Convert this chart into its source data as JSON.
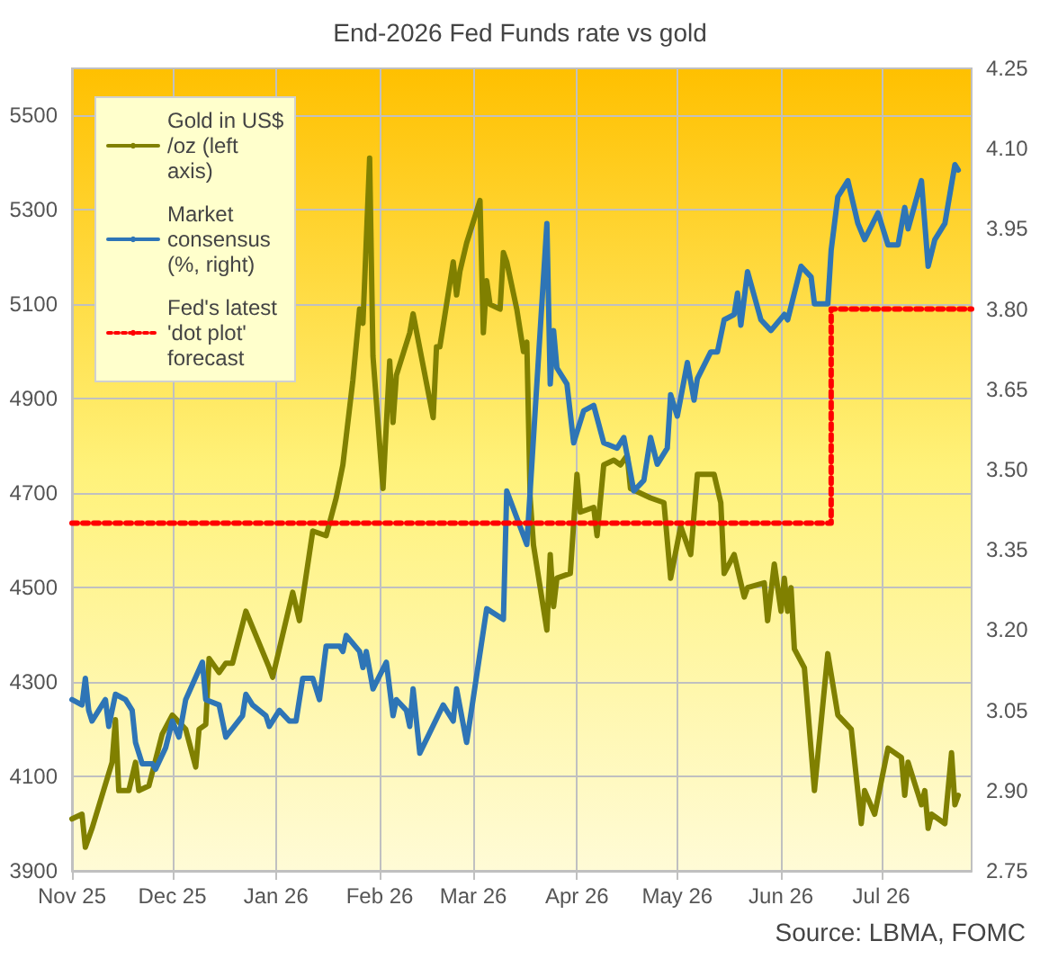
{
  "chart_data": {
    "type": "line",
    "title": "End-2026 Fed Funds rate vs gold",
    "annotations": [
      "Source: LBMA, FOMC"
    ],
    "xlim": [
      "2025-11-01",
      "2026-07-28"
    ],
    "xticks": [
      {
        "value": "2025-11-01",
        "label": "Nov 25"
      },
      {
        "value": "2025-12-01",
        "label": "Dec 25"
      },
      {
        "value": "2026-01-01",
        "label": "Jan 26"
      },
      {
        "value": "2026-02-01",
        "label": "Feb 26"
      },
      {
        "value": "2026-03-01",
        "label": "Mar 26"
      },
      {
        "value": "2026-04-01",
        "label": "Apr 26"
      },
      {
        "value": "2026-05-01",
        "label": "May 26"
      },
      {
        "value": "2026-06-01",
        "label": "Jun 26"
      },
      {
        "value": "2026-07-01",
        "label": "Jul 26"
      }
    ],
    "ylim": [
      3900,
      5600
    ],
    "yticks": [
      3900,
      4100,
      4300,
      4500,
      4700,
      4900,
      5100,
      5300,
      5500
    ],
    "y2lim": [
      2.75,
      4.25
    ],
    "y2ticks": [
      {
        "value": 2.75,
        "label": "2.75"
      },
      {
        "value": 2.9,
        "label": "2.90"
      },
      {
        "value": 3.05,
        "label": "3.05"
      },
      {
        "value": 3.2,
        "label": "3.20"
      },
      {
        "value": 3.35,
        "label": "3.35"
      },
      {
        "value": 3.5,
        "label": "3.50"
      },
      {
        "value": 3.65,
        "label": "3.65"
      },
      {
        "value": 3.8,
        "label": "3.80"
      },
      {
        "value": 3.95,
        "label": "3.95"
      },
      {
        "value": 4.1,
        "label": "4.10"
      },
      {
        "value": 4.25,
        "label": "4.25"
      }
    ],
    "grid": true,
    "legend": "top left",
    "marker": "none",
    "series": [
      {
        "name": "Gold in US$/oz (left axis)",
        "color": "#808000",
        "x": [
          "2025-11-01",
          "2025-11-04",
          "2025-11-05",
          "2025-11-07",
          "2025-11-13",
          "2025-11-14",
          "2025-11-15",
          "2025-11-18",
          "2025-11-20",
          "2025-11-21",
          "2025-11-24",
          "2025-11-28",
          "2025-12-01",
          "2025-12-05",
          "2025-12-08",
          "2025-12-09",
          "2025-12-11",
          "2025-12-12",
          "2025-12-15",
          "2025-12-17",
          "2025-12-19",
          "2025-12-23",
          "2025-12-30",
          "2025-12-31",
          "2026-01-06",
          "2026-01-08",
          "2026-01-12",
          "2026-01-16",
          "2026-01-19",
          "2026-01-21",
          "2026-01-24",
          "2026-01-26",
          "2026-01-27",
          "2026-01-29",
          "2026-01-30",
          "2026-02-02",
          "2026-02-04",
          "2026-02-05",
          "2026-02-06",
          "2026-02-10",
          "2026-02-11",
          "2026-02-17",
          "2026-02-18",
          "2026-02-19",
          "2026-02-23",
          "2026-02-24",
          "2026-02-25",
          "2026-02-27",
          "2026-03-03",
          "2026-03-04",
          "2026-03-05",
          "2026-03-06",
          "2026-03-09",
          "2026-03-10",
          "2026-03-11",
          "2026-03-14",
          "2026-03-16",
          "2026-03-17",
          "2026-03-18",
          "2026-03-19",
          "2026-03-23",
          "2026-03-24",
          "2026-03-25",
          "2026-03-26",
          "2026-03-30",
          "2026-04-01",
          "2026-04-02",
          "2026-04-06",
          "2026-04-07",
          "2026-04-09",
          "2026-04-12",
          "2026-04-14",
          "2026-04-16",
          "2026-04-17",
          "2026-04-23",
          "2026-04-27",
          "2026-04-29",
          "2026-05-02",
          "2026-05-05",
          "2026-05-07",
          "2026-05-12",
          "2026-05-14",
          "2026-05-15",
          "2026-05-18",
          "2026-05-21",
          "2026-05-22",
          "2026-05-27",
          "2026-05-28",
          "2026-05-30",
          "2026-06-01",
          "2026-06-02",
          "2026-06-03",
          "2026-06-04",
          "2026-06-05",
          "2026-06-08",
          "2026-06-11",
          "2026-06-15",
          "2026-06-18",
          "2026-06-22",
          "2026-06-25",
          "2026-06-26",
          "2026-06-29",
          "2026-07-03",
          "2026-07-07",
          "2026-07-08",
          "2026-07-09",
          "2026-07-13",
          "2026-07-14",
          "2026-07-15",
          "2026-07-16",
          "2026-07-20",
          "2026-07-22",
          "2026-07-23",
          "2026-07-24"
        ],
        "values": [
          4010,
          4020,
          3950,
          3990,
          4130,
          4220,
          4070,
          4070,
          4130,
          4070,
          4080,
          4190,
          4230,
          4200,
          4120,
          4200,
          4210,
          4350,
          4320,
          4340,
          4340,
          4450,
          4330,
          4310,
          4490,
          4430,
          4620,
          4610,
          4690,
          4760,
          4940,
          5090,
          5060,
          5410,
          4990,
          4710,
          4980,
          4850,
          4950,
          5040,
          5080,
          4860,
          5010,
          5010,
          5190,
          5120,
          5170,
          5230,
          5320,
          5040,
          5150,
          5100,
          5090,
          5210,
          5190,
          5090,
          5000,
          5020,
          4690,
          4590,
          4410,
          4570,
          4460,
          4520,
          4530,
          4740,
          4660,
          4670,
          4610,
          4760,
          4770,
          4760,
          4780,
          4710,
          4690,
          4680,
          4520,
          4630,
          4570,
          4740,
          4740,
          4680,
          4530,
          4570,
          4480,
          4500,
          4510,
          4430,
          4550,
          4450,
          4520,
          4450,
          4500,
          4370,
          4330,
          4070,
          4360,
          4230,
          4200,
          4000,
          4070,
          4020,
          4160,
          4140,
          4060,
          4130,
          4040,
          4070,
          3990,
          4020,
          4000,
          4150,
          4040,
          4060
        ]
      },
      {
        "name": "Market consensus (%, right)",
        "color": "#2e75b6",
        "axis": "y2",
        "x": [
          "2025-11-01",
          "2025-11-04",
          "2025-11-05",
          "2025-11-06",
          "2025-11-07",
          "2025-11-11",
          "2025-11-12",
          "2025-11-14",
          "2025-11-17",
          "2025-11-19",
          "2025-11-20",
          "2025-11-22",
          "2025-11-25",
          "2025-11-26",
          "2025-11-29",
          "2025-12-01",
          "2025-12-03",
          "2025-12-05",
          "2025-12-10",
          "2025-12-11",
          "2025-12-15",
          "2025-12-17",
          "2025-12-22",
          "2025-12-23",
          "2025-12-25",
          "2025-12-29",
          "2025-12-30",
          "2026-01-02",
          "2026-01-05",
          "2026-01-07",
          "2026-01-09",
          "2026-01-12",
          "2026-01-14",
          "2026-01-16",
          "2026-01-20",
          "2026-01-21",
          "2026-01-22",
          "2026-01-26",
          "2026-01-27",
          "2026-01-28",
          "2026-01-30",
          "2026-02-03",
          "2026-02-05",
          "2026-02-06",
          "2026-02-09",
          "2026-02-10",
          "2026-02-11",
          "2026-02-13",
          "2026-02-20",
          "2026-02-23",
          "2026-02-24",
          "2026-02-27",
          "2026-03-05",
          "2026-03-10",
          "2026-03-11",
          "2026-03-17",
          "2026-03-23",
          "2026-03-24",
          "2026-03-25",
          "2026-03-26",
          "2026-03-29",
          "2026-03-31",
          "2026-04-03",
          "2026-04-06",
          "2026-04-09",
          "2026-04-13",
          "2026-04-15",
          "2026-04-18",
          "2026-04-21",
          "2026-04-23",
          "2026-04-25",
          "2026-04-28",
          "2026-04-29",
          "2026-05-01",
          "2026-05-04",
          "2026-05-06",
          "2026-05-07",
          "2026-05-11",
          "2026-05-13",
          "2026-05-15",
          "2026-05-18",
          "2026-05-19",
          "2026-05-20",
          "2026-05-22",
          "2026-05-26",
          "2026-05-29",
          "2026-06-02",
          "2026-06-03",
          "2026-06-07",
          "2026-06-10",
          "2026-06-11",
          "2026-06-15",
          "2026-06-16",
          "2026-06-18",
          "2026-06-21",
          "2026-06-24",
          "2026-06-26",
          "2026-06-30",
          "2026-07-03",
          "2026-07-06",
          "2026-07-08",
          "2026-07-09",
          "2026-07-13",
          "2026-07-15",
          "2026-07-17",
          "2026-07-20",
          "2026-07-23",
          "2026-07-24"
        ],
        "values": [
          3.07,
          3.06,
          3.11,
          3.05,
          3.03,
          3.07,
          3.02,
          3.08,
          3.07,
          3.05,
          2.99,
          2.95,
          2.95,
          2.94,
          2.98,
          3.03,
          3.0,
          3.07,
          3.14,
          3.07,
          3.06,
          3.0,
          3.04,
          3.08,
          3.06,
          3.04,
          3.02,
          3.05,
          3.03,
          3.03,
          3.11,
          3.11,
          3.07,
          3.17,
          3.17,
          3.16,
          3.19,
          3.16,
          3.13,
          3.16,
          3.09,
          3.14,
          3.04,
          3.07,
          3.05,
          3.02,
          3.09,
          2.97,
          3.06,
          3.03,
          3.09,
          2.99,
          3.24,
          3.22,
          3.46,
          3.36,
          3.96,
          3.66,
          3.76,
          3.69,
          3.66,
          3.55,
          3.61,
          3.62,
          3.55,
          3.54,
          3.56,
          3.46,
          3.48,
          3.56,
          3.51,
          3.54,
          3.64,
          3.6,
          3.7,
          3.63,
          3.67,
          3.72,
          3.72,
          3.78,
          3.79,
          3.83,
          3.77,
          3.87,
          3.78,
          3.76,
          3.79,
          3.78,
          3.88,
          3.86,
          3.81,
          3.81,
          3.91,
          4.01,
          4.04,
          3.96,
          3.93,
          3.98,
          3.92,
          3.92,
          3.99,
          3.95,
          4.04,
          3.88,
          3.93,
          3.96,
          4.07,
          4.06
        ]
      },
      {
        "name": "Fed's latest 'dot plot' forecast",
        "color": "#ff0000",
        "axis": "y2",
        "type": "step",
        "line_style": "dotted",
        "x": [
          "2025-11-01",
          "2026-06-16",
          "2026-07-28"
        ],
        "values": [
          3.4,
          3.8,
          3.8
        ]
      }
    ]
  }
}
